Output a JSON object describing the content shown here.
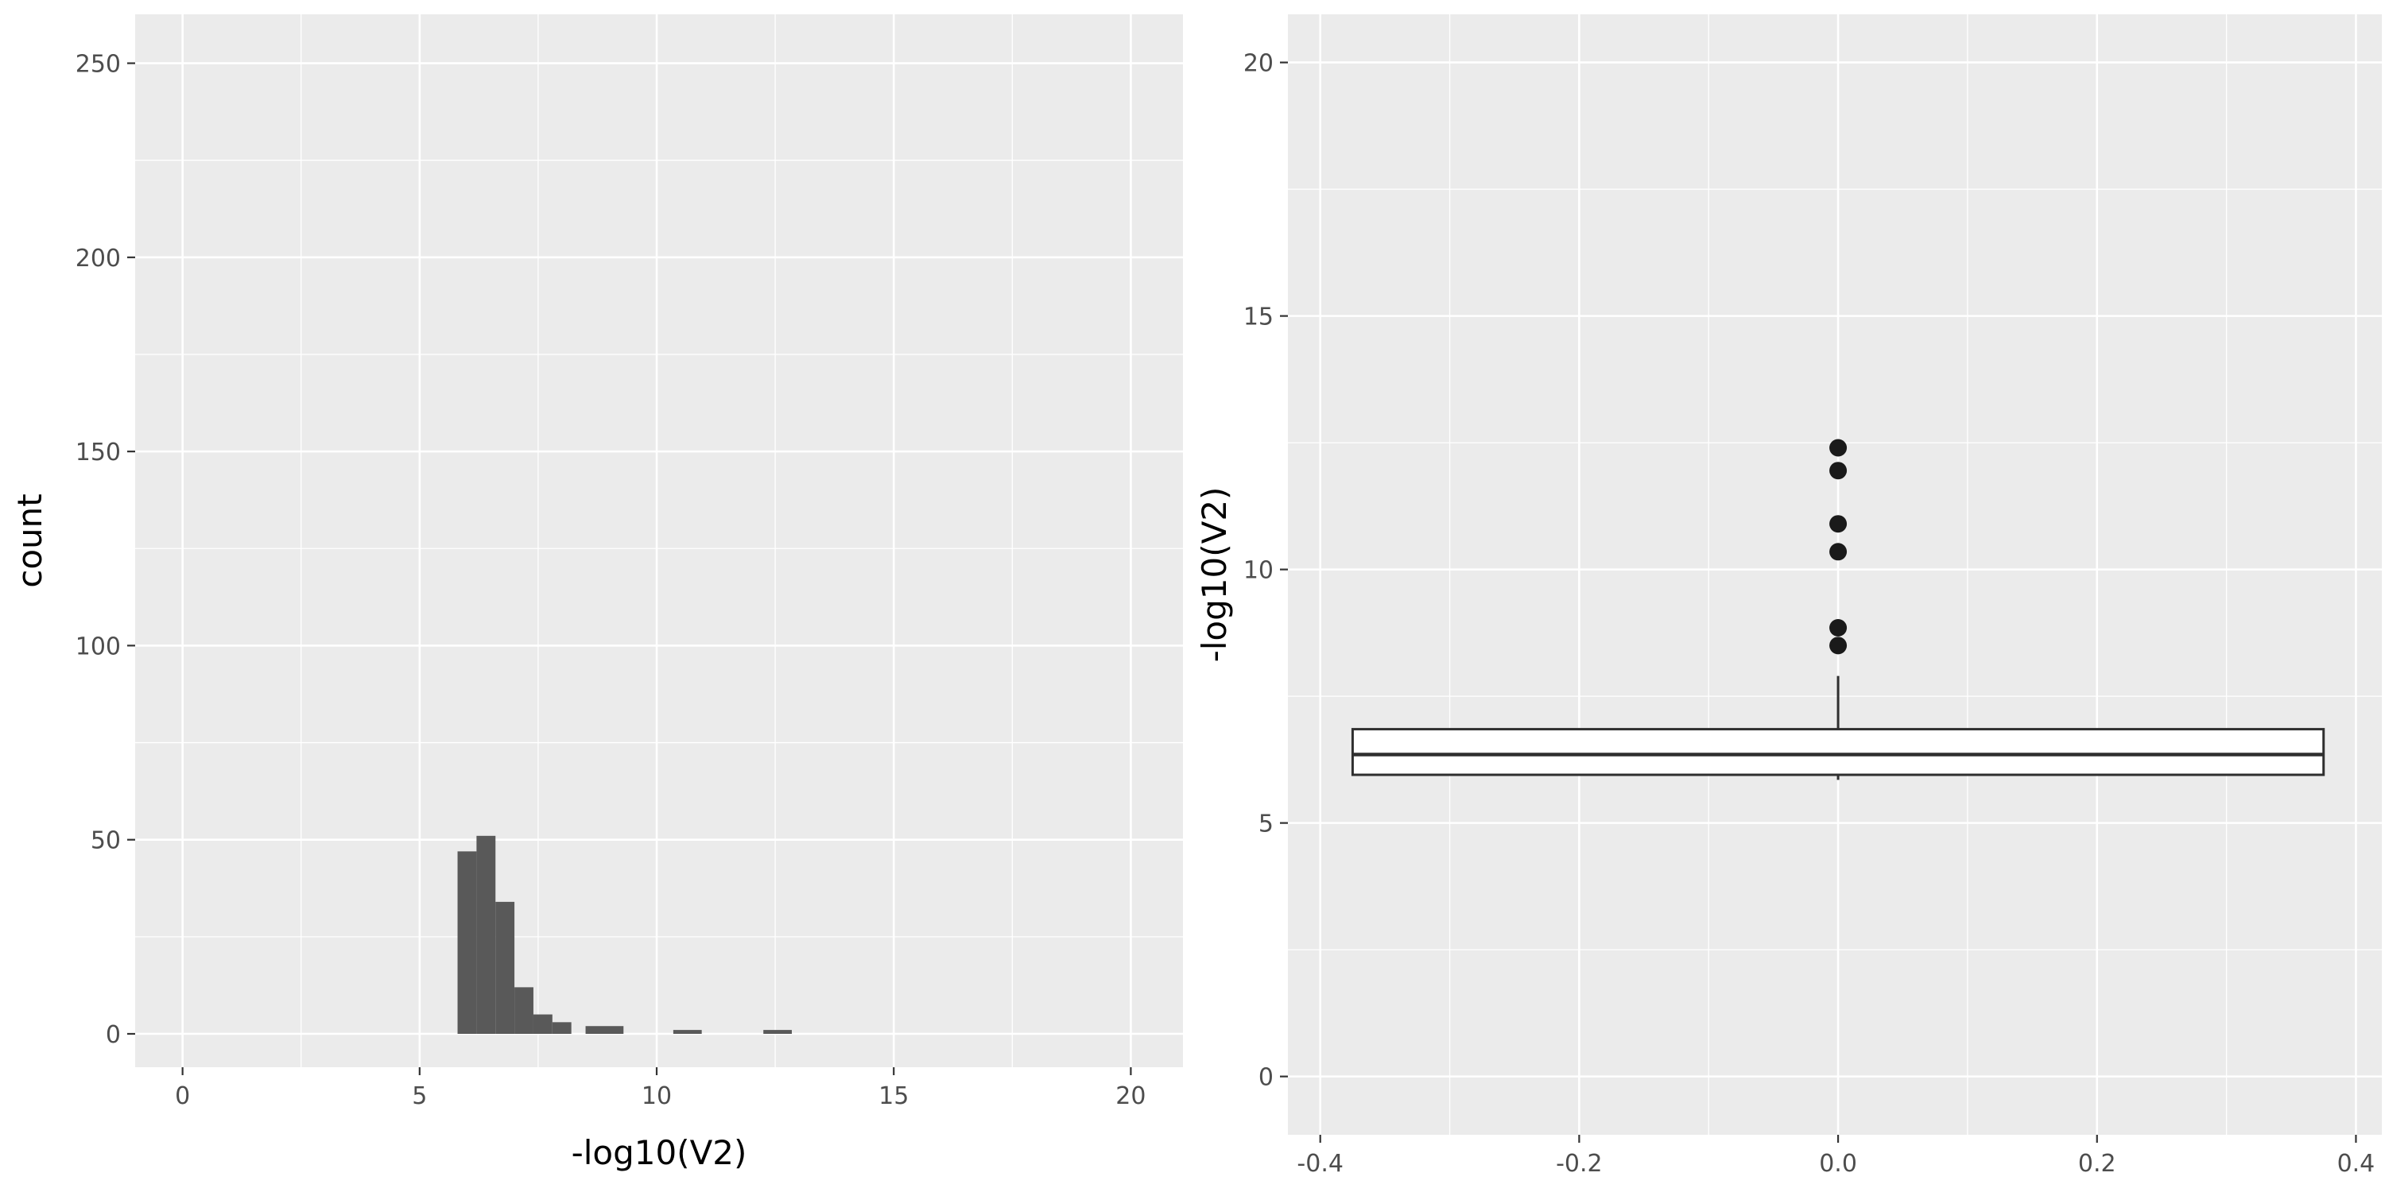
{
  "figure": {
    "background": "#FFFFFF",
    "panels": [
      "histogram",
      "boxplot"
    ]
  },
  "style": {
    "panel_bg": "#EBEBEB",
    "grid_color": "#FFFFFF",
    "bar_color": "#595959",
    "box_color": "#2F2F2F",
    "box_fill": "#FFFFFF",
    "point_color": "#1A1A1A",
    "tick_color": "#333333",
    "tick_label_color": "#4D4D4D",
    "axis_title_color": "#000000"
  },
  "chart_data": [
    {
      "name": "histogram",
      "type": "bar",
      "subtype": "histogram",
      "title": "",
      "xlabel": "-log10(V2)",
      "ylabel": "count",
      "xlim": [
        -1.0,
        21.1
      ],
      "ylim": [
        -8.6,
        262.6
      ],
      "x_ticks": [
        0,
        5,
        10,
        15,
        20
      ],
      "x_tick_labels": [
        "0",
        "5",
        "10",
        "15",
        "20"
      ],
      "y_ticks": [
        0,
        50,
        100,
        150,
        200,
        250
      ],
      "y_tick_labels": [
        "0",
        "50",
        "100",
        "150",
        "200",
        "250"
      ],
      "x_minor": [
        2.5,
        7.5,
        12.5,
        17.5
      ],
      "y_minor": [
        25,
        75,
        125,
        175,
        225
      ],
      "bins": [
        {
          "x0": 5.8,
          "x1": 6.2,
          "count": 47
        },
        {
          "x0": 6.2,
          "x1": 6.6,
          "count": 51
        },
        {
          "x0": 6.6,
          "x1": 7.0,
          "count": 34
        },
        {
          "x0": 7.0,
          "x1": 7.4,
          "count": 12
        },
        {
          "x0": 7.4,
          "x1": 7.8,
          "count": 5
        },
        {
          "x0": 7.8,
          "x1": 8.2,
          "count": 3
        },
        {
          "x0": 8.5,
          "x1": 9.3,
          "count": 2
        },
        {
          "x0": 10.35,
          "x1": 10.95,
          "count": 1
        },
        {
          "x0": 12.25,
          "x1": 12.85,
          "count": 1
        }
      ],
      "grid": true,
      "legend": "none"
    },
    {
      "name": "boxplot",
      "type": "boxplot",
      "title": "",
      "xlabel": "",
      "ylabel": "-log10(V2)",
      "xlim": [
        -0.425,
        0.42
      ],
      "ylim": [
        -1.15,
        20.95
      ],
      "x_ticks": [
        -0.4,
        -0.2,
        0,
        0.2,
        0.4
      ],
      "x_tick_labels": [
        "-0.4",
        "-0.2",
        "0.0",
        "0.2",
        "0.4"
      ],
      "y_ticks": [
        0,
        5,
        10,
        15,
        20
      ],
      "y_tick_labels": [
        "0",
        "5",
        "10",
        "15",
        "20"
      ],
      "x_minor": [
        -0.3,
        -0.1,
        0.1,
        0.3
      ],
      "y_minor": [
        2.5,
        7.5,
        12.5,
        17.5
      ],
      "box": {
        "x": 0,
        "width": 0.75,
        "q1": 5.95,
        "median": 6.35,
        "q3": 6.85,
        "whisker_low": 5.85,
        "whisker_high": 7.9
      },
      "outliers": [
        8.5,
        8.85,
        10.35,
        10.9,
        11.95,
        12.4
      ],
      "grid": true,
      "legend": "none"
    }
  ]
}
